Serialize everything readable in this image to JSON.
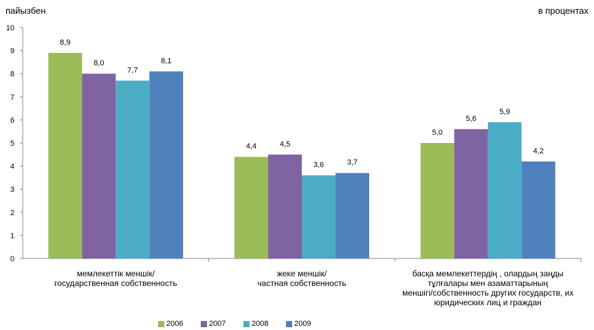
{
  "unit_left": "пайызбен",
  "unit_right": "в процентах",
  "colors": [
    "#9BBB59",
    "#8064A2",
    "#4BACC6",
    "#4F81BD"
  ],
  "chart_data": {
    "type": "bar",
    "ylim": [
      0,
      10
    ],
    "yticks": [
      "0",
      "1",
      "2",
      "3",
      "4",
      "5",
      "6",
      "7",
      "8",
      "9",
      "10"
    ],
    "grid": false,
    "legend_position": "bottom",
    "categories": [
      [
        "мемлекеттік меншік/",
        "государственная собственность"
      ],
      [
        "жеке меншік/",
        "частная собственность"
      ],
      [
        "басқа мемлекеттердің , олардың заңды",
        "тұлғалары мен азаматтарының",
        "меншігі/собственность других государств, их",
        "юридических лиц и граждан"
      ]
    ],
    "series": [
      {
        "name": "2006",
        "values": [
          8.9,
          4.4,
          5.0
        ],
        "labels": [
          "8,9",
          "4,4",
          "5,0"
        ]
      },
      {
        "name": "2007",
        "values": [
          8.0,
          4.5,
          5.6
        ],
        "labels": [
          "8,0",
          "4,5",
          "5,6"
        ]
      },
      {
        "name": "2008",
        "values": [
          7.7,
          3.6,
          5.9
        ],
        "labels": [
          "7,7",
          "3,6",
          "5,9"
        ]
      },
      {
        "name": "2009",
        "values": [
          8.1,
          3.7,
          4.2
        ],
        "labels": [
          "8,1",
          "3,7",
          "4,2"
        ]
      }
    ]
  }
}
